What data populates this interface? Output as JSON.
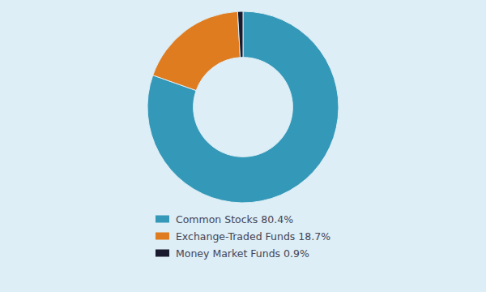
{
  "chart_data": {
    "type": "donut",
    "categories": [
      "Common Stocks 80.4%",
      "Exchange-Traded Funds 18.7%",
      "Money Market Funds 0.9%"
    ],
    "values": [
      80.4,
      18.7,
      0.9
    ],
    "colors": [
      "#3498b8",
      "#e07c20",
      "#1a1a2e"
    ],
    "legend": "bottom"
  }
}
